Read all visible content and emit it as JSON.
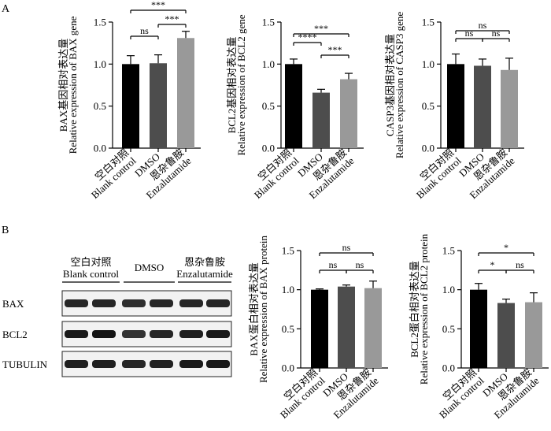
{
  "figure": {
    "panel_labels": [
      "A",
      "B"
    ]
  },
  "chart_data": [
    {
      "type": "bar",
      "panel": "A",
      "categories": [
        [
          "空白对照",
          "Blank control"
        ],
        [
          "DMSO"
        ],
        [
          "恩杂鲁胺",
          "Enzalutamide"
        ]
      ],
      "values": [
        1.0,
        1.01,
        1.31
      ],
      "errors": [
        0.1,
        0.1,
        0.08
      ],
      "colors": [
        "#000000",
        "#4d4d4d",
        "#999999"
      ],
      "ylabel_lines": [
        "BAX基因相对表达量",
        "Relative expression of BAX gene"
      ],
      "ylim": [
        0,
        1.5
      ],
      "yticks": [
        "0.0",
        "0.5",
        "1.0",
        "1.5"
      ],
      "comparisons": [
        {
          "from": 0,
          "to": 2,
          "label": "***"
        },
        {
          "from": 1,
          "to": 2,
          "label": "***"
        },
        {
          "from": 0,
          "to": 1,
          "label": "ns"
        }
      ]
    },
    {
      "type": "bar",
      "panel": "A",
      "categories": [
        [
          "空白对照",
          "Blank control"
        ],
        [
          "DMSO"
        ],
        [
          "恩杂鲁胺",
          "Enzalutamide"
        ]
      ],
      "values": [
        1.0,
        0.66,
        0.82
      ],
      "errors": [
        0.06,
        0.04,
        0.07
      ],
      "colors": [
        "#000000",
        "#4d4d4d",
        "#999999"
      ],
      "ylabel_lines": [
        "BCL2基因相对表达量",
        "Relative expression of BCL2 gene"
      ],
      "ylim": [
        0,
        1.5
      ],
      "yticks": [
        "0.0",
        "0.5",
        "1.0",
        "1.5"
      ],
      "comparisons": [
        {
          "from": 0,
          "to": 2,
          "label": "***"
        },
        {
          "from": 0,
          "to": 1,
          "label": "****"
        },
        {
          "from": 1,
          "to": 2,
          "label": "***"
        }
      ]
    },
    {
      "type": "bar",
      "panel": "A",
      "categories": [
        [
          "空白对照",
          "Blank control"
        ],
        [
          "DMSO"
        ],
        [
          "恩杂鲁胺",
          "Enzalutamide"
        ]
      ],
      "values": [
        1.0,
        0.98,
        0.93
      ],
      "errors": [
        0.12,
        0.08,
        0.14
      ],
      "colors": [
        "#000000",
        "#4d4d4d",
        "#999999"
      ],
      "ylabel_lines": [
        "CASP3基因相对表达量",
        "Relative expression of CASP3 gene"
      ],
      "ylim": [
        0,
        1.5
      ],
      "yticks": [
        "0.0",
        "0.5",
        "1.0",
        "1.5"
      ],
      "comparisons": [
        {
          "from": 0,
          "to": 2,
          "label": "ns"
        },
        {
          "from": 0,
          "to": 1,
          "label": "ns"
        },
        {
          "from": 1,
          "to": 2,
          "label": "ns"
        }
      ]
    },
    {
      "type": "bar",
      "panel": "B",
      "categories": [
        [
          "空白对照",
          "Blank control"
        ],
        [
          "DMSO"
        ],
        [
          "恩杂鲁胺",
          "Enzalutamide"
        ]
      ],
      "values": [
        1.0,
        1.04,
        1.02
      ],
      "errors": [
        0.01,
        0.02,
        0.09
      ],
      "colors": [
        "#000000",
        "#4d4d4d",
        "#999999"
      ],
      "ylabel_lines": [
        "BAX蛋白相对表达量",
        "Relative expression of BAX protein"
      ],
      "ylim": [
        0,
        1.5
      ],
      "yticks": [
        "0.0",
        "0.5",
        "1.0",
        "1.5"
      ],
      "comparisons": [
        {
          "from": 0,
          "to": 2,
          "label": "ns"
        },
        {
          "from": 0,
          "to": 1,
          "label": "ns"
        },
        {
          "from": 1,
          "to": 2,
          "label": "ns"
        }
      ]
    },
    {
      "type": "bar",
      "panel": "B",
      "categories": [
        [
          "空白对照",
          "Blank control"
        ],
        [
          "DMSO"
        ],
        [
          "恩杂鲁胺",
          "Enzalutamide"
        ]
      ],
      "values": [
        1.0,
        0.83,
        0.84
      ],
      "errors": [
        0.08,
        0.05,
        0.12
      ],
      "colors": [
        "#000000",
        "#4d4d4d",
        "#999999"
      ],
      "ylabel_lines": [
        "BCL2蛋白相对表达量",
        "Relative expression of BCL2 protein"
      ],
      "ylim": [
        0,
        1.5
      ],
      "yticks": [
        "0.0",
        "0.5",
        "1.0",
        "1.5"
      ],
      "comparisons": [
        {
          "from": 0,
          "to": 2,
          "label": "*"
        },
        {
          "from": 0,
          "to": 1,
          "label": "*"
        },
        {
          "from": 1,
          "to": 2,
          "label": "ns"
        }
      ]
    }
  ],
  "western_blot": {
    "groups": [
      [
        "空白对照",
        "Blank control"
      ],
      [
        "DMSO"
      ],
      [
        "恩杂鲁胺",
        "Enzalutamide"
      ]
    ],
    "rows": [
      {
        "label": "BAX",
        "intensities": [
          0.85,
          0.85,
          0.82,
          0.85,
          0.85,
          0.85
        ]
      },
      {
        "label": "BCL2",
        "intensities": [
          0.9,
          0.92,
          0.8,
          0.85,
          0.88,
          0.9
        ]
      },
      {
        "label": "TUBULIN",
        "intensities": [
          0.88,
          0.88,
          0.85,
          0.87,
          0.9,
          0.9
        ]
      }
    ]
  }
}
